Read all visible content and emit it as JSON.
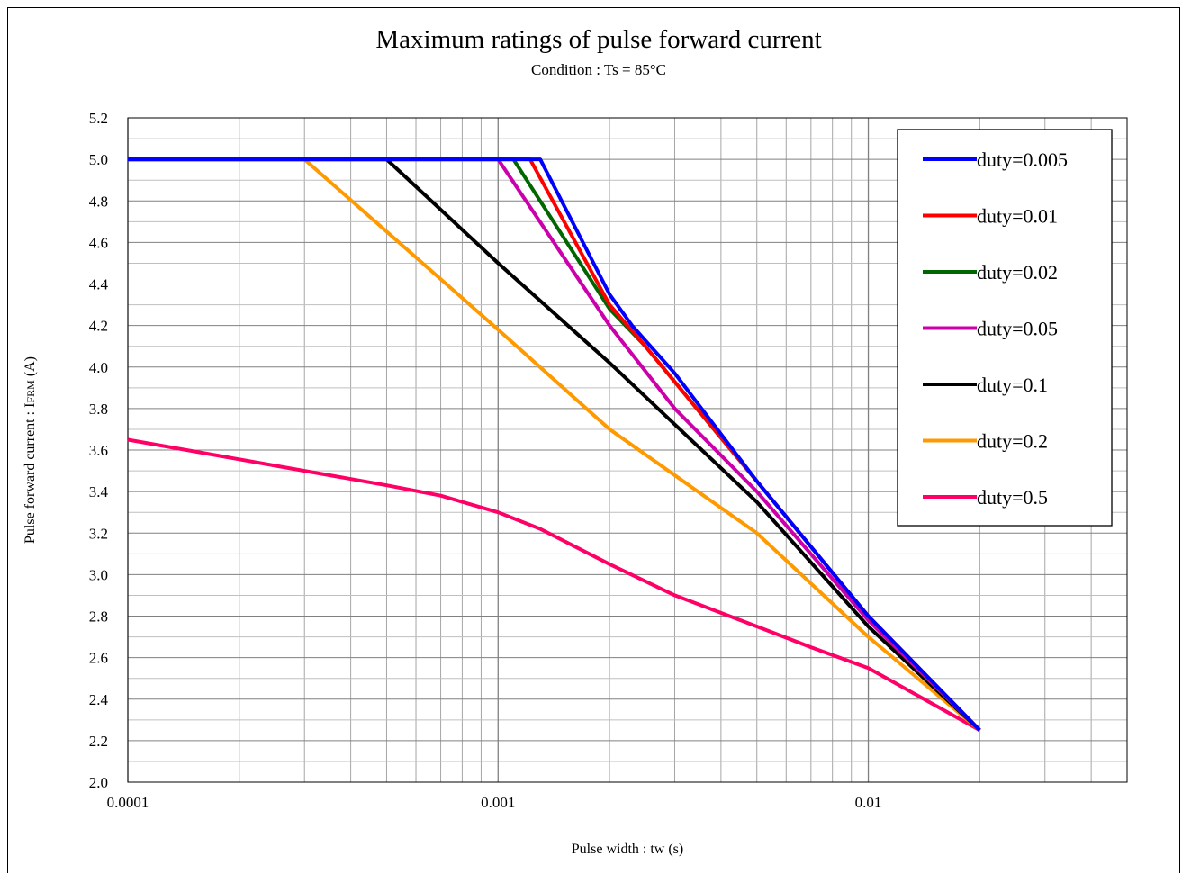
{
  "chart_data": {
    "type": "line",
    "title": "Maximum ratings of pulse forward current",
    "subtitle": "Condition : Ts = 85°C",
    "xlabel": "Pulse width : tw (s)",
    "ylabel_main": "Pulse forward current : I",
    "ylabel_sub": "FRM",
    "ylabel_unit": " (A)",
    "x_scale": "log",
    "xlim": [
      0.0001,
      0.05
    ],
    "ylim": [
      2.0,
      5.2
    ],
    "x_ticks": [
      {
        "value": 0.0001,
        "label": "0.0001"
      },
      {
        "value": 0.001,
        "label": "0.001"
      },
      {
        "value": 0.01,
        "label": "0.01"
      }
    ],
    "y_ticks": [
      {
        "value": 2.0,
        "label": "2.0"
      },
      {
        "value": 2.2,
        "label": "2.2"
      },
      {
        "value": 2.4,
        "label": "2.4"
      },
      {
        "value": 2.6,
        "label": "2.6"
      },
      {
        "value": 2.8,
        "label": "2.8"
      },
      {
        "value": 3.0,
        "label": "3.0"
      },
      {
        "value": 3.2,
        "label": "3.2"
      },
      {
        "value": 3.4,
        "label": "3.4"
      },
      {
        "value": 3.6,
        "label": "3.6"
      },
      {
        "value": 3.8,
        "label": "3.8"
      },
      {
        "value": 4.0,
        "label": "4.0"
      },
      {
        "value": 4.2,
        "label": "4.2"
      },
      {
        "value": 4.4,
        "label": "4.4"
      },
      {
        "value": 4.6,
        "label": "4.6"
      },
      {
        "value": 4.8,
        "label": "4.8"
      },
      {
        "value": 5.0,
        "label": "5.0"
      },
      {
        "value": 5.2,
        "label": "5.2"
      }
    ],
    "grid": true,
    "legend_position": "top-right",
    "series": [
      {
        "name": "duty=0.005",
        "color": "#0000FF",
        "x": [
          0.0001,
          0.0013,
          0.002,
          0.0023,
          0.003,
          0.005,
          0.01,
          0.02
        ],
        "y": [
          5.0,
          5.0,
          4.35,
          4.2,
          3.97,
          3.45,
          2.8,
          2.25
        ]
      },
      {
        "name": "duty=0.01",
        "color": "#FF0000",
        "x": [
          0.0001,
          0.00122,
          0.002,
          0.0025,
          0.005,
          0.01,
          0.02
        ],
        "y": [
          5.0,
          5.0,
          4.3,
          4.1,
          3.45,
          2.8,
          2.25
        ]
      },
      {
        "name": "duty=0.02",
        "color": "#006600",
        "x": [
          0.0001,
          0.0011,
          0.002,
          0.0025,
          0.005,
          0.01,
          0.02
        ],
        "y": [
          5.0,
          5.0,
          4.28,
          4.1,
          3.45,
          2.8,
          2.25
        ]
      },
      {
        "name": "duty=0.05",
        "color": "#CC00AA",
        "x": [
          0.0001,
          0.001,
          0.002,
          0.003,
          0.005,
          0.01,
          0.02
        ],
        "y": [
          5.0,
          5.0,
          4.2,
          3.8,
          3.4,
          2.78,
          2.25
        ]
      },
      {
        "name": "duty=0.1",
        "color": "#000000",
        "x": [
          0.0001,
          0.0005,
          0.001,
          0.002,
          0.005,
          0.01,
          0.02
        ],
        "y": [
          5.0,
          5.0,
          4.5,
          4.02,
          3.35,
          2.75,
          2.25
        ]
      },
      {
        "name": "duty=0.2",
        "color": "#FF9900",
        "x": [
          0.0001,
          0.0003,
          0.001,
          0.002,
          0.005,
          0.01,
          0.02
        ],
        "y": [
          5.0,
          5.0,
          4.18,
          3.7,
          3.2,
          2.7,
          2.25
        ]
      },
      {
        "name": "duty=0.5",
        "color": "#FF0066",
        "x": [
          0.0001,
          0.0003,
          0.0005,
          0.0007,
          0.001,
          0.0013,
          0.002,
          0.003,
          0.005,
          0.007,
          0.01,
          0.02
        ],
        "y": [
          3.65,
          3.5,
          3.43,
          3.38,
          3.3,
          3.22,
          3.05,
          2.9,
          2.75,
          2.65,
          2.55,
          2.25
        ]
      }
    ]
  }
}
